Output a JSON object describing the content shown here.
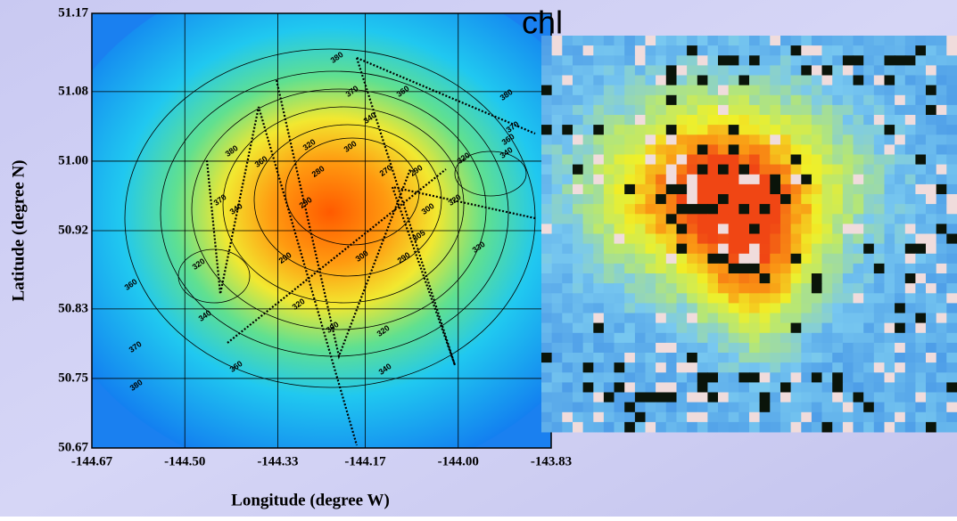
{
  "map": {
    "x_axis_title": "Longitude (degree W)",
    "y_axis_title": "Latitude (degree N)",
    "inset_title": "chl",
    "xlim": [
      -144.67,
      -143.83
    ],
    "ylim": [
      50.67,
      51.17
    ],
    "xticks": [
      -144.67,
      {
        "value": -144.5,
        "label": "-144.50"
      },
      -144.33,
      -144.17,
      {
        "value": -144,
        "label": "-144.00"
      },
      -143.83
    ],
    "yticks": [
      51.17,
      51.08,
      {
        "value": 51,
        "label": "51.00"
      },
      50.92,
      50.83,
      50.75,
      50.67
    ],
    "contour_labels": [
      380,
      370,
      360,
      380,
      340,
      300,
      320,
      380,
      360,
      280,
      370,
      360,
      340,
      320,
      290,
      270,
      320,
      300,
      370,
      340,
      290,
      320,
      360,
      290,
      290,
      300,
      330,
      305,
      340,
      320,
      300,
      320,
      340,
      360,
      370,
      380
    ]
  }
}
